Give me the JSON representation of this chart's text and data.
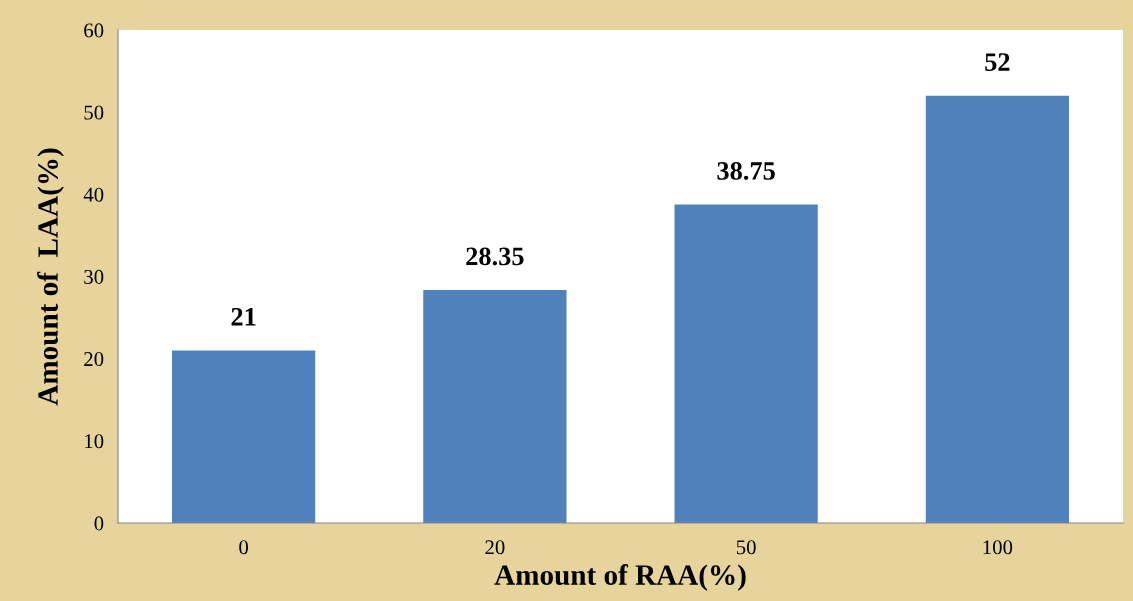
{
  "chart_data": {
    "type": "bar",
    "xlabel": "Amount of RAA(%)",
    "ylabel": "Amount of  LAA(%)",
    "categories": [
      "0",
      "20",
      "50",
      "100"
    ],
    "values": [
      21,
      28.35,
      38.75,
      52
    ],
    "color": "#4f81bd",
    "ylim": [
      0,
      60
    ],
    "yticks": [
      0,
      10,
      20,
      30,
      40,
      50,
      60
    ],
    "grid": false,
    "data_labels": true
  }
}
